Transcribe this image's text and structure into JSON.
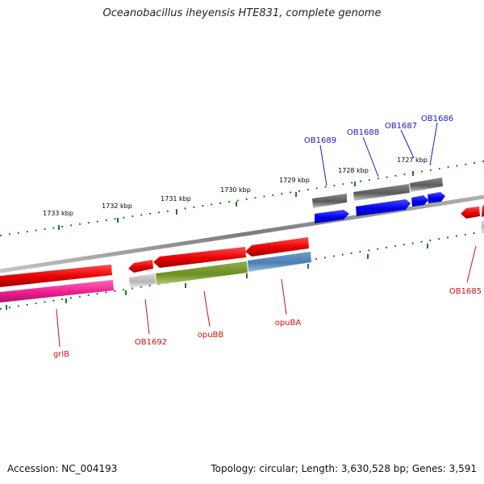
{
  "title": "Oceanobacillus iheyensis HTE831, complete genome",
  "footer": {
    "accession": "Accession: NC_004193",
    "summary": "Topology: circular; Length: 3,630,528 bp; Genes: 3,591"
  },
  "scale_labels": [
    "1733 kbp",
    "1732 kbp",
    "1731 kbp",
    "1730 kbp",
    "1729 kbp",
    "1728 kbp",
    "1727 kbp"
  ],
  "gene_labels": {
    "ob1689": "OB1689",
    "ob1688": "OB1688",
    "ob1687": "OB1687",
    "ob1686": "OB1686",
    "ob1685": "OB1685",
    "grlb": "grlB",
    "ob1692": "OB1692",
    "opubb": "opuBB",
    "opuba": "opuBA"
  },
  "colors": {
    "forward_label": "#1a1acc",
    "reverse_label": "#cc1111",
    "backbone": "#8a8a8a",
    "ticks": "#1f7a1f"
  }
}
